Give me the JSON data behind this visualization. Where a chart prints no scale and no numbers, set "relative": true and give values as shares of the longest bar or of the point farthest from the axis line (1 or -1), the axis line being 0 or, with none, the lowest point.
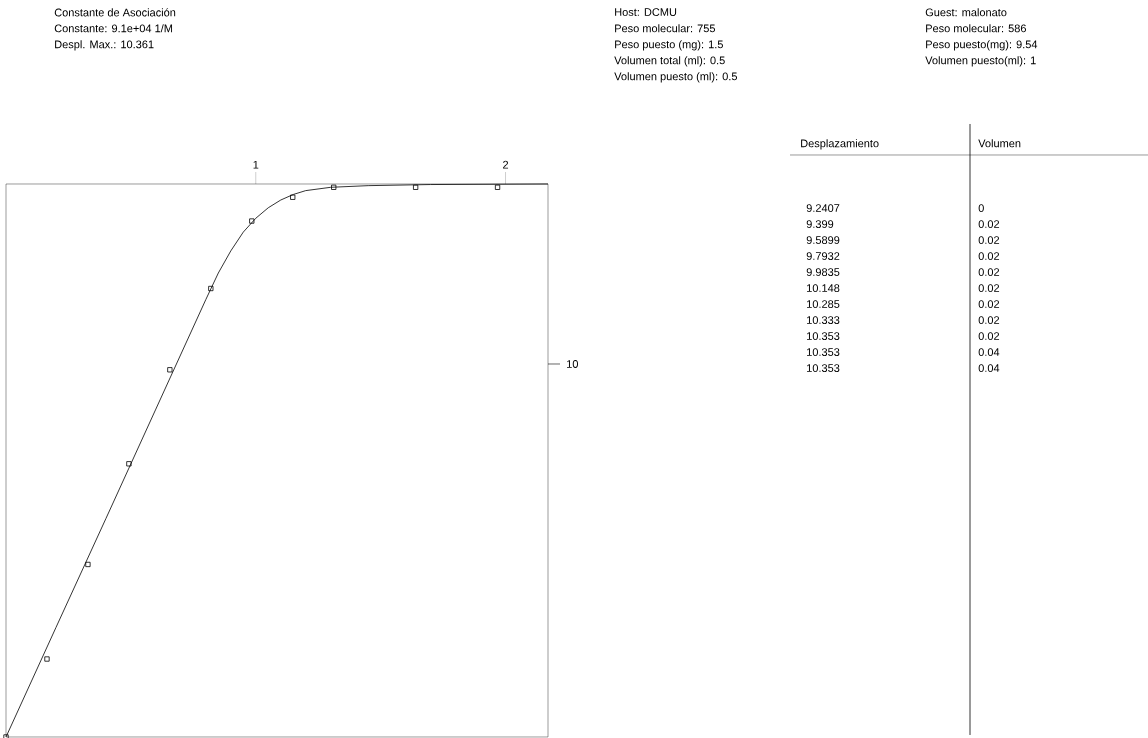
{
  "chart_data": {
    "type": "scatter",
    "title": "Constante de Asociación",
    "relative": true,
    "annotations": [
      "Constante: 9.1e+04 1/M",
      "Despl. Max.: 10.361",
      "Host: DCMU",
      "Peso molecular: 755",
      "Peso puesto (mg): 1.5",
      "Volumen total (ml): 0.5",
      "Volumen puesto (ml): 0.5",
      "Guest: malonato",
      "Peso molecular: 586",
      "Peso puesto(mg): 9.54",
      "Volumen puesto(ml): 1",
      "Desplazamiento",
      "Volumen",
      "9.2407",
      "9.399",
      "9.5899",
      "9.7932",
      "9.9835",
      "10.148",
      "10.285",
      "10.333",
      "10.353",
      "10.353",
      "10.353",
      "0",
      "0.02",
      "0.02",
      "0.02",
      "0.02",
      "0.02",
      "0.02",
      "0.02",
      "0.02",
      "0.04",
      "0.04",
      "10"
    ],
    "xlim": [
      0,
      2.17
    ],
    "xticks": [
      1,
      2
    ],
    "series": [
      {
        "type": "scatter",
        "marker": "square",
        "color": "#000000",
        "x": [
          0,
          0.164,
          0.328,
          0.492,
          0.656,
          0.82,
          0.984,
          1.148,
          1.312,
          1.64,
          1.968
        ],
        "values": [
          0,
          0.141,
          0.312,
          0.494,
          0.664,
          0.811,
          0.933,
          0.976,
          0.994,
          0.994,
          0.994
        ]
      },
      {
        "type": "line",
        "marker": "none",
        "color": "#000000",
        "x": [
          0,
          0.2,
          0.4,
          0.6,
          0.8,
          0.85,
          0.9,
          0.95,
          1.0,
          1.05,
          1.1,
          1.15,
          1.2,
          1.3,
          1.45,
          1.7,
          2.17
        ],
        "values": [
          0,
          0.198,
          0.395,
          0.593,
          0.791,
          0.839,
          0.879,
          0.913,
          0.938,
          0.957,
          0.971,
          0.981,
          0.988,
          0.994,
          0.997,
          0.999,
          1
        ]
      }
    ]
  }
}
